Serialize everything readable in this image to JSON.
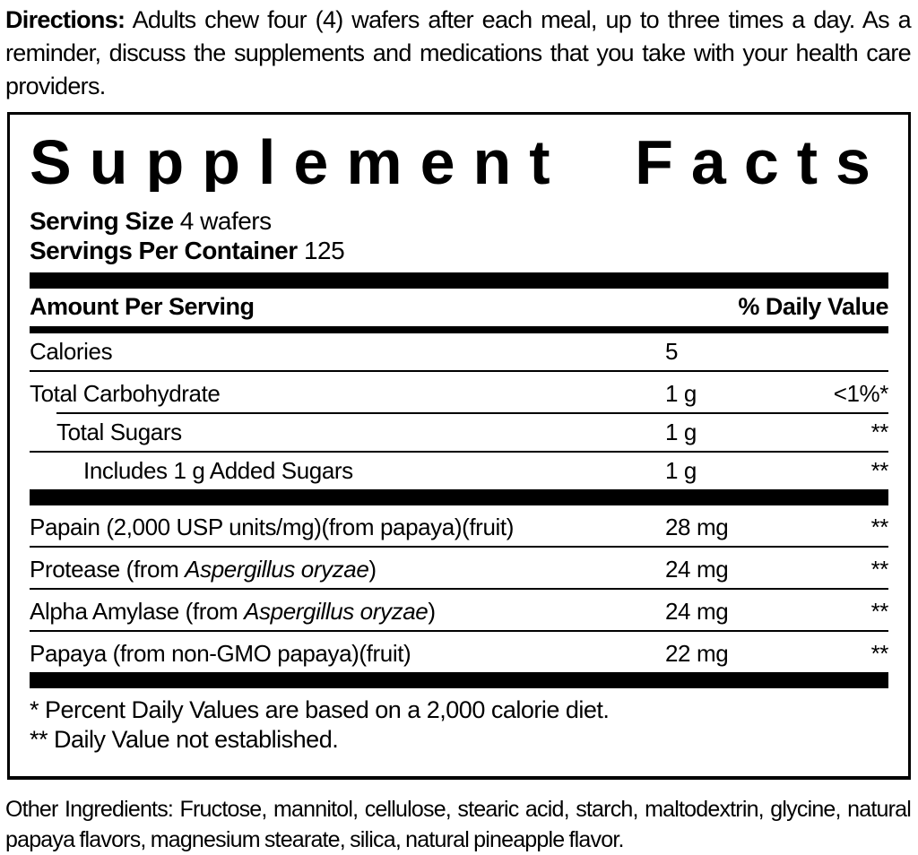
{
  "colors": {
    "text": "#000000",
    "background": "#ffffff",
    "rule": "#000000"
  },
  "directions": {
    "label": "Directions:",
    "text": " Adults chew four (4) wafers after each meal, up to three times a day. As a reminder, discuss the supplements and medications that you take with your health care providers."
  },
  "panel": {
    "title": "Supplement Facts",
    "serving_size_label": "Serving Size",
    "serving_size_value": "4 wafers",
    "servings_per_container_label": "Servings Per Container",
    "servings_per_container_value": "125",
    "header": {
      "amount_per_serving": "Amount Per Serving",
      "daily_value": "% Daily Value"
    },
    "rows": [
      {
        "pre": "Calories",
        "italic": "",
        "post": "",
        "amount": "5",
        "dv": "",
        "indent": 0
      },
      {
        "pre": "Total Carbohydrate",
        "italic": "",
        "post": "",
        "amount": "1 g",
        "dv": "<1%*",
        "indent": 0
      },
      {
        "pre": "Total Sugars",
        "italic": "",
        "post": "",
        "amount": "1 g",
        "dv": "**",
        "indent": 1
      },
      {
        "pre": "Includes 1 g Added Sugars",
        "italic": "",
        "post": "",
        "amount": "1 g",
        "dv": "**",
        "indent": 2
      },
      {
        "pre": "Papain (2,000 USP units/mg)(from papaya)(fruit)",
        "italic": "",
        "post": "",
        "amount": "28 mg",
        "dv": "**",
        "indent": 0
      },
      {
        "pre": "Protease (from ",
        "italic": "Aspergillus oryzae",
        "post": ")",
        "amount": "24 mg",
        "dv": "**",
        "indent": 0
      },
      {
        "pre": "Alpha Amylase (from ",
        "italic": "Aspergillus oryzae",
        "post": ")",
        "amount": "24 mg",
        "dv": "**",
        "indent": 0
      },
      {
        "pre": "Papaya (from non-GMO papaya)(fruit)",
        "italic": "",
        "post": "",
        "amount": "22 mg",
        "dv": "**",
        "indent": 0
      }
    ],
    "footnotes": [
      "* Percent Daily Values are based on a 2,000 calorie diet.",
      "** Daily Value not established."
    ]
  },
  "other_ingredients": {
    "label": "Other Ingredients:",
    "text": " Fructose, mannitol, cellulose, stearic acid, starch, maltodextrin, glycine, natural papaya flavors, magnesium stearate, silica, natural pineapple flavor."
  }
}
